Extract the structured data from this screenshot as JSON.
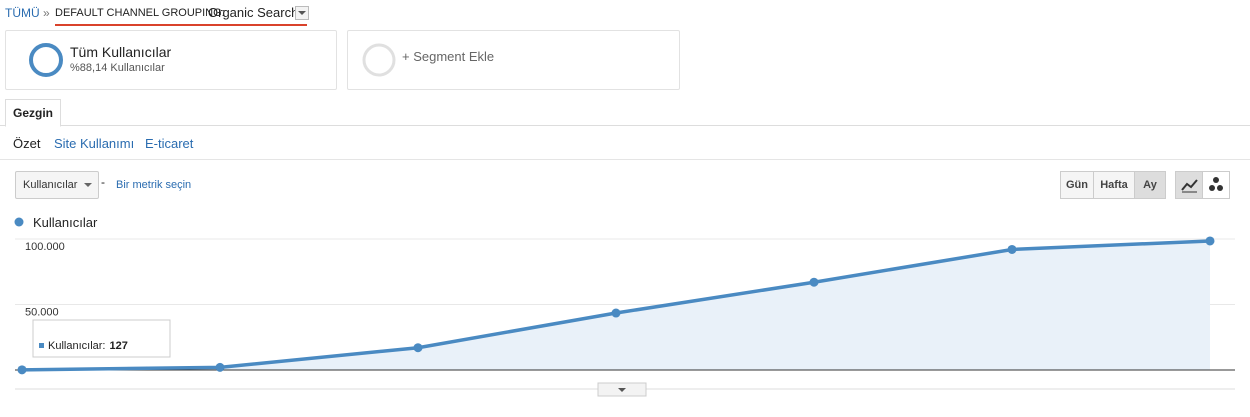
{
  "breadcrumb": {
    "root": "TÜMÜ",
    "separator": "»",
    "dimension": "DEFAULT CHANNEL GROUPING:",
    "value": "Organic Search"
  },
  "segments": [
    {
      "title": "Tüm Kullanıcılar",
      "subtitle": "%88,14 Kullanıcılar"
    },
    {
      "title": "+ Segment Ekle"
    }
  ],
  "tab": "Gezgin",
  "subtabs": [
    "Özet",
    "Site Kullanımı",
    "E-ticaret"
  ],
  "metric_picker": {
    "selected": "Kullanıcılar",
    "separator": "-",
    "link": "Bir metrik seçin"
  },
  "period_buttons": [
    "Gün",
    "Hafta",
    "Ay"
  ],
  "tooltip_label": "Kullanıcılar:",
  "chart_data": {
    "type": "line",
    "categories": [
      null,
      null,
      null,
      null,
      null,
      null,
      null
    ],
    "series": [
      {
        "name": "Kullanıcılar",
        "color": "#4a8ac2",
        "values": [
          127,
          2000,
          17000,
          43500,
          67000,
          92000,
          98500
        ]
      }
    ],
    "ylim": [
      0,
      100000
    ],
    "yticks": [
      {
        "value": 50000,
        "label": "50.000"
      },
      {
        "value": 100000,
        "label": "100.000"
      }
    ],
    "grid": true,
    "area": true
  }
}
